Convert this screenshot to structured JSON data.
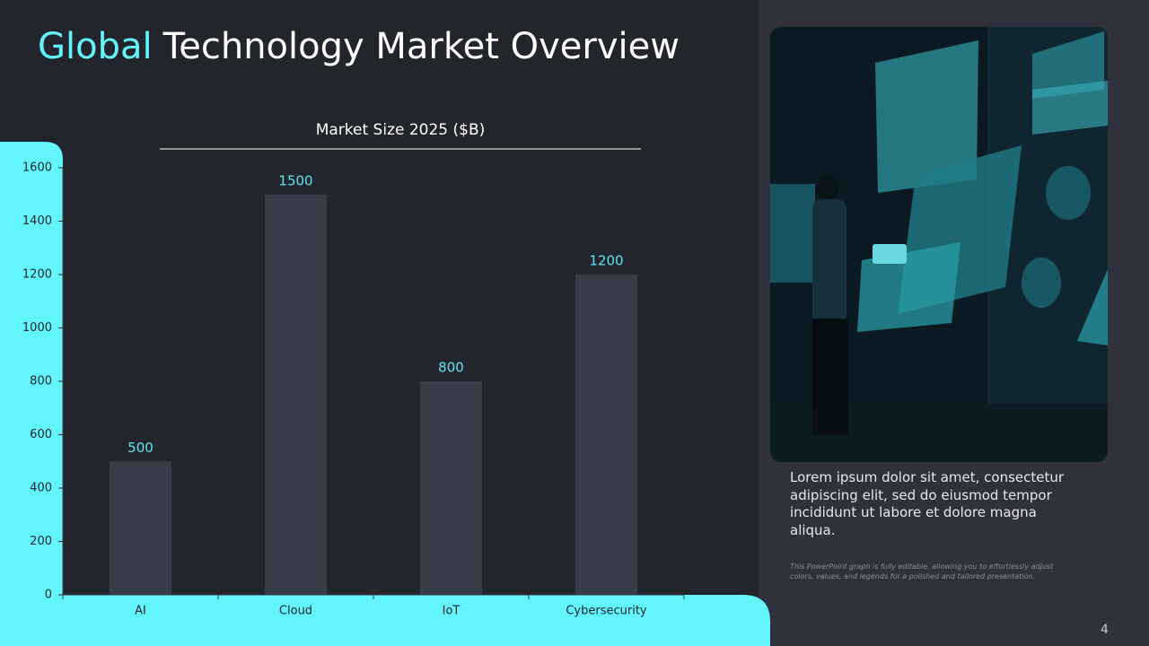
{
  "slide": {
    "title_highlight": "Global",
    "title_rest": "Technology Market Overview",
    "body": "Lorem ipsum dolor sit amet, consectetur adipiscing elit, sed do eiusmod tempor incididunt ut labore et dolore magna aliqua.",
    "note": "This PowerPoint graph is fully editable, allowing you to effortlessly adjust colors, values, and legends for a polished and tailored presentation.",
    "page_number": "4"
  },
  "chart_data": {
    "type": "bar",
    "title": "Market Size 2025 ($B)",
    "categories": [
      "AI",
      "Cloud",
      "IoT",
      "Cybersecurity"
    ],
    "values": [
      500,
      1500,
      800,
      1200
    ],
    "color": "#393c48",
    "label_color": "#5ce6ee",
    "ylim": [
      0,
      1600
    ],
    "yticks": [
      0,
      200,
      400,
      600,
      800,
      1000,
      1200,
      1400,
      1600
    ],
    "grid": false
  }
}
